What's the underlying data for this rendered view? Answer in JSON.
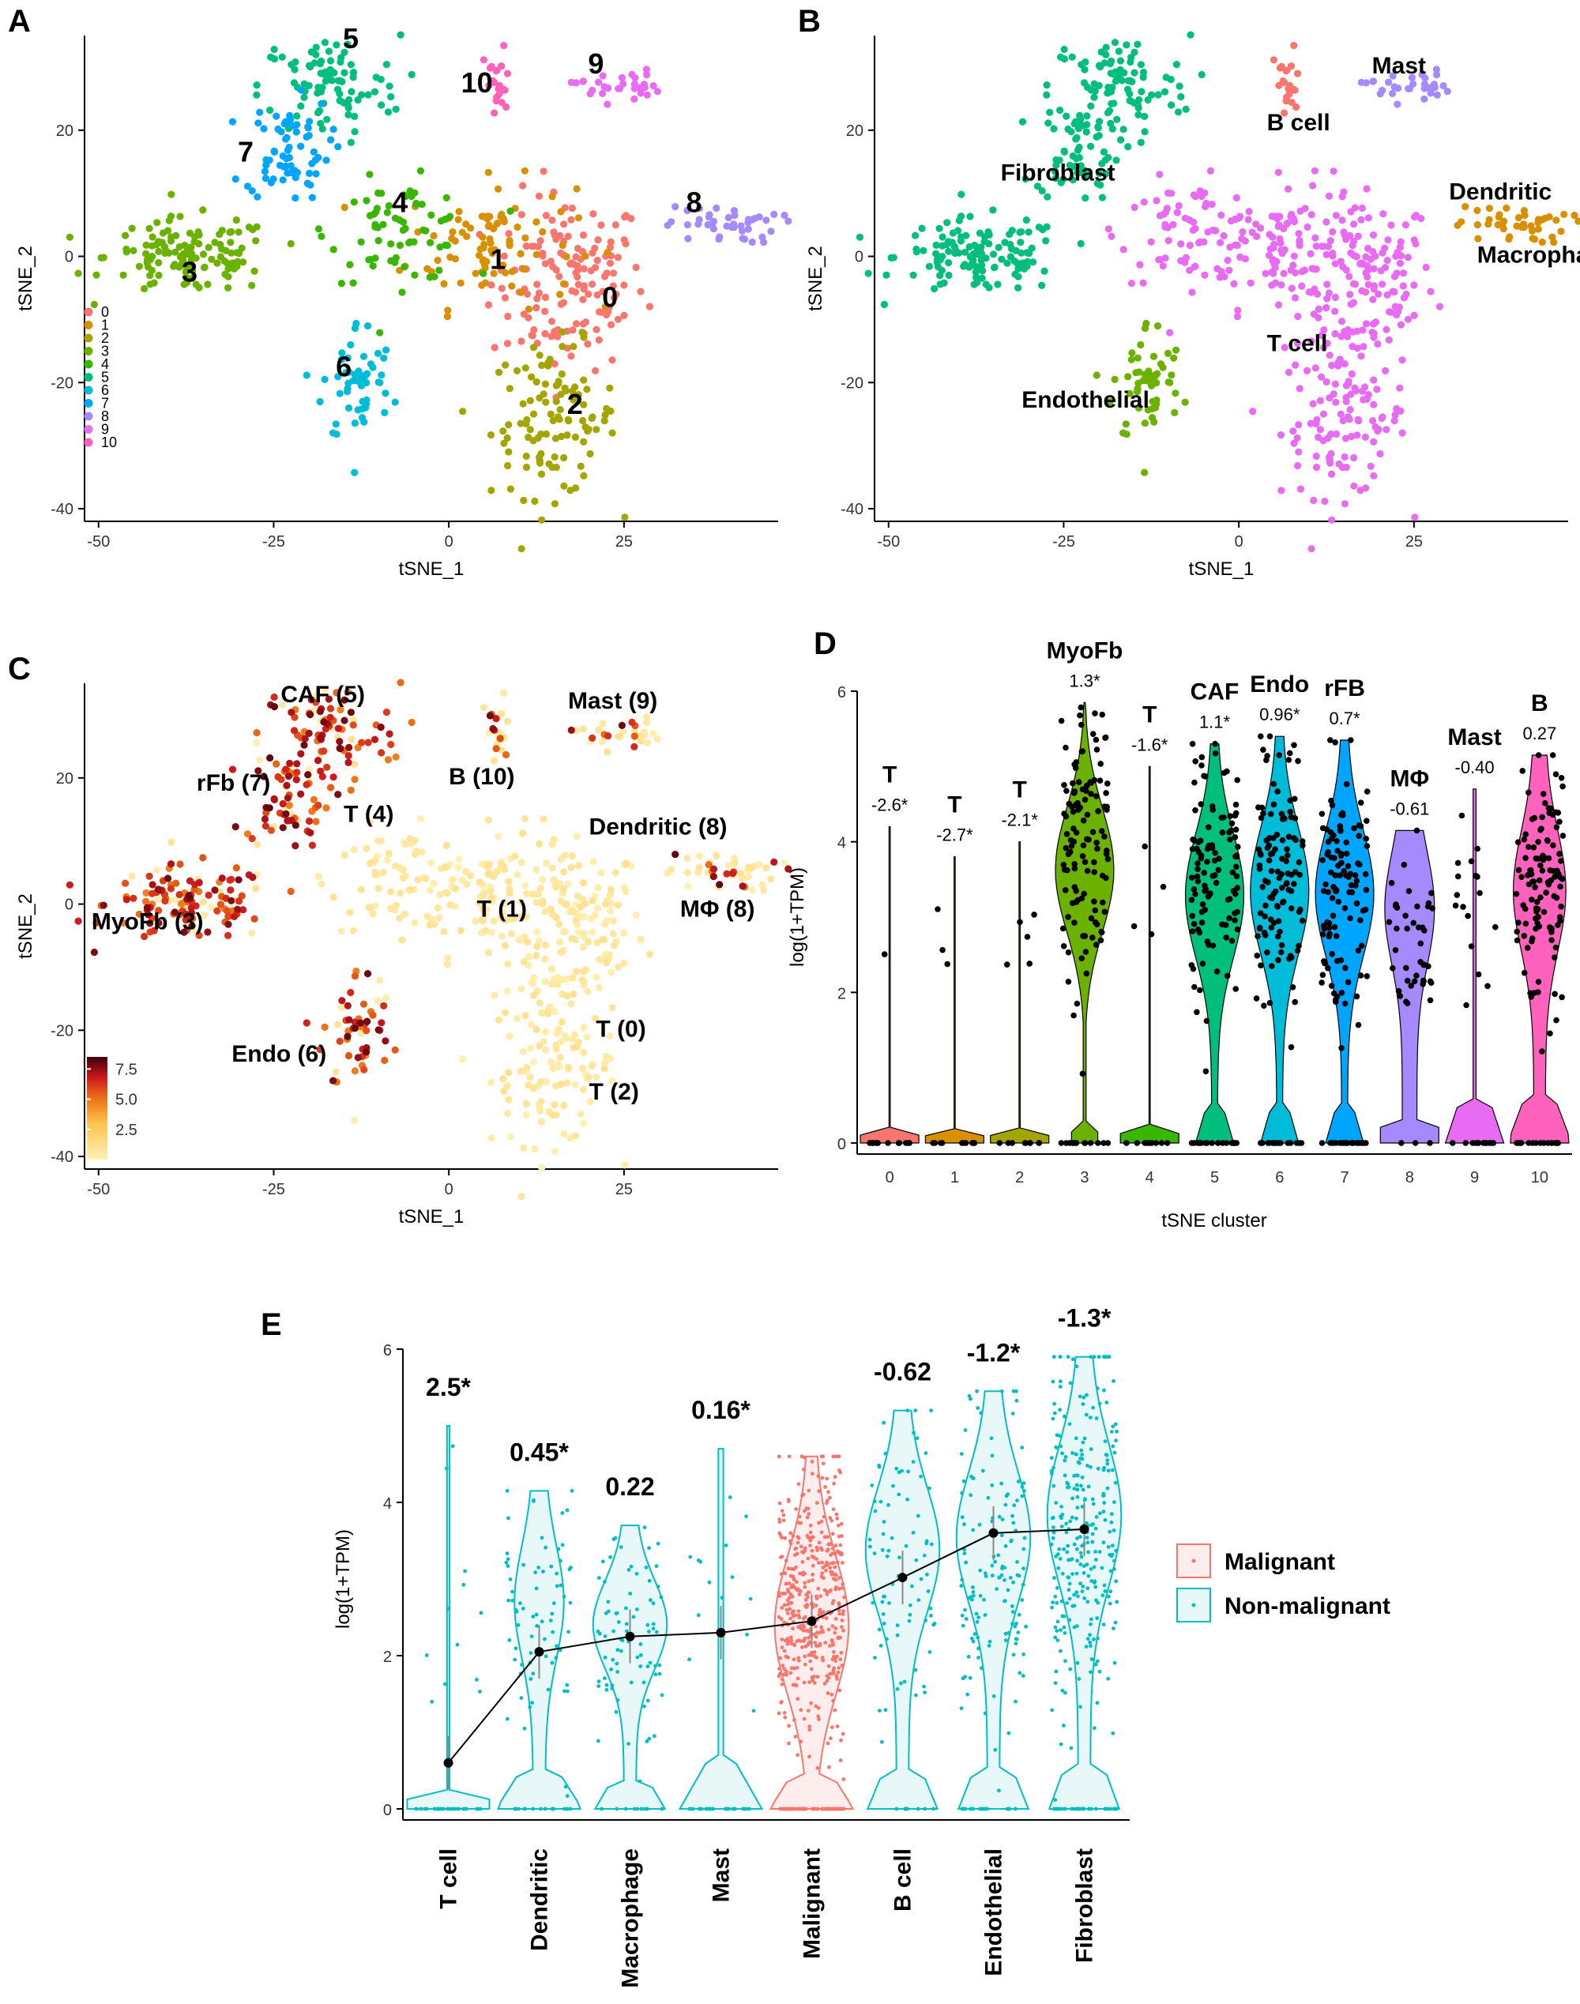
{
  "chart_data": [
    {
      "panel": "A",
      "type": "scatter",
      "xlabel": "tSNE_1",
      "ylabel": "tSNE_2",
      "xticks": [
        "-50",
        "-25",
        "0",
        "25"
      ],
      "yticks": [
        "-40",
        "-20",
        "0",
        "20"
      ],
      "xlim": [
        -52,
        47
      ],
      "ylim": [
        -42,
        35
      ],
      "legend_title": "",
      "legend": [
        "0",
        "1",
        "2",
        "3",
        "4",
        "5",
        "6",
        "7",
        "8",
        "9",
        "10"
      ],
      "colors": [
        "#F8766D",
        "#D89000",
        "#A3A500",
        "#6BB100",
        "#39B600",
        "#00BF7D",
        "#00BCD8",
        "#00A5FF",
        "#A58AFF",
        "#E76BF3",
        "#FF62BC"
      ],
      "cluster_labels": [
        {
          "text": "0",
          "x": 23,
          "y": -8
        },
        {
          "text": "1",
          "x": 7,
          "y": -2
        },
        {
          "text": "2",
          "x": 18,
          "y": -25
        },
        {
          "text": "3",
          "x": -37,
          "y": -4
        },
        {
          "text": "4",
          "x": -7,
          "y": 7
        },
        {
          "text": "5",
          "x": -14,
          "y": 33
        },
        {
          "text": "6",
          "x": -15,
          "y": -19
        },
        {
          "text": "7",
          "x": -29,
          "y": 15
        },
        {
          "text": "8",
          "x": 35,
          "y": 7
        },
        {
          "text": "9",
          "x": 21,
          "y": 29
        },
        {
          "text": "10",
          "x": 4,
          "y": 26
        }
      ]
    },
    {
      "panel": "B",
      "type": "scatter",
      "xlabel": "tSNE_1",
      "ylabel": "tSNE_2",
      "xticks": [
        "-50",
        "-25",
        "0",
        "25"
      ],
      "yticks": [
        "-40",
        "-20",
        "0",
        "20"
      ],
      "xlim": [
        -52,
        47
      ],
      "ylim": [
        -42,
        35
      ],
      "labels": [
        {
          "text": "Fibroblast",
          "x": -34,
          "y": 12
        },
        {
          "text": "B cell",
          "x": 4,
          "y": 20
        },
        {
          "text": "Mast",
          "x": 19,
          "y": 29
        },
        {
          "text": "Dendritic",
          "x": 30,
          "y": 9
        },
        {
          "text": "Macrophage",
          "x": 34,
          "y": -1
        },
        {
          "text": "T cell",
          "x": 4,
          "y": -15
        },
        {
          "text": "Endothelial",
          "x": -31,
          "y": -24
        }
      ]
    },
    {
      "panel": "C",
      "type": "scatter",
      "xlabel": "tSNE_1",
      "ylabel": "tSNE_2",
      "xticks": [
        "-50",
        "-25",
        "0",
        "25"
      ],
      "yticks": [
        "-40",
        "-20",
        "0",
        "20"
      ],
      "xlim": [
        -52,
        47
      ],
      "ylim": [
        -42,
        35
      ],
      "colorbar_ticks": [
        "7.5",
        "5.0",
        "2.5"
      ],
      "colorbar_range": [
        0,
        8.5
      ],
      "labels": [
        {
          "text": "CAF (5)",
          "x": -24,
          "y": 32
        },
        {
          "text": "rFb (7)",
          "x": -36,
          "y": 18
        },
        {
          "text": "B (10)",
          "x": 0,
          "y": 19
        },
        {
          "text": "Mast (9)",
          "x": 17,
          "y": 31
        },
        {
          "text": "Dendritic (8)",
          "x": 20,
          "y": 11
        },
        {
          "text": "T (4)",
          "x": -15,
          "y": 13
        },
        {
          "text": "MyoFb (3)",
          "x": -51,
          "y": -4
        },
        {
          "text": "T (1)",
          "x": 4,
          "y": -2
        },
        {
          "text": "MΦ (8)",
          "x": 33,
          "y": -2
        },
        {
          "text": "T (0)",
          "x": 21,
          "y": -21
        },
        {
          "text": "Endo (6)",
          "x": -31,
          "y": -25
        },
        {
          "text": "T (2)",
          "x": 20,
          "y": -31
        }
      ]
    },
    {
      "panel": "D",
      "type": "violin",
      "xlabel": "tSNE cluster",
      "ylabel": "log(1+TPM)",
      "ylim": [
        0,
        6
      ],
      "yticks": [
        "0",
        "2",
        "4",
        "6"
      ],
      "categories": [
        "0",
        "1",
        "2",
        "3",
        "4",
        "5",
        "6",
        "7",
        "8",
        "9",
        "10"
      ],
      "names": [
        "T",
        "T",
        "T",
        "MyoFb",
        "T",
        "CAF",
        "Endo",
        "rFB",
        "MΦ",
        "Mast",
        "B"
      ],
      "values": [
        "-2.6*",
        "-2.7*",
        "-2.1*",
        "1.3*",
        "-1.6*",
        "1.1*",
        "0.96*",
        "0.7*",
        "-0.61",
        "-0.40",
        "0.27"
      ],
      "max": [
        4.2,
        3.8,
        4.0,
        5.85,
        5.0,
        5.3,
        5.4,
        5.35,
        4.15,
        4.7,
        5.15
      ],
      "colors": [
        "#F8766D",
        "#D89000",
        "#A3A500",
        "#6BB100",
        "#39B600",
        "#00BF7D",
        "#00BCD8",
        "#00A5FF",
        "#A58AFF",
        "#E76BF3",
        "#FF62BC"
      ]
    },
    {
      "panel": "E",
      "type": "violin",
      "xlabel": "",
      "ylabel": "log(1+TPM)",
      "ylim": [
        0,
        6
      ],
      "yticks": [
        "0",
        "2",
        "4",
        "6"
      ],
      "categories": [
        "T cell",
        "Dendritic",
        "Macrophage",
        "Mast",
        "Malignant",
        "B cell",
        "Endothelial",
        "Fibroblast"
      ],
      "values": [
        "2.5*",
        "0.45*",
        "0.22",
        "0.16*",
        "",
        "-0.62",
        "-1.2*",
        "-1.3*"
      ],
      "max": [
        5.0,
        4.15,
        3.7,
        4.7,
        4.6,
        5.2,
        5.45,
        5.9
      ],
      "means": [
        0.6,
        2.05,
        2.25,
        2.3,
        2.45,
        3.02,
        3.6,
        3.65
      ],
      "group": [
        "Non-malignant",
        "Non-malignant",
        "Non-malignant",
        "Non-malignant",
        "Malignant",
        "Non-malignant",
        "Non-malignant",
        "Non-malignant"
      ],
      "legend": [
        {
          "name": "Malignant",
          "color": "#F8766D"
        },
        {
          "name": "Non-malignant",
          "color": "#00BFC4"
        }
      ]
    }
  ]
}
